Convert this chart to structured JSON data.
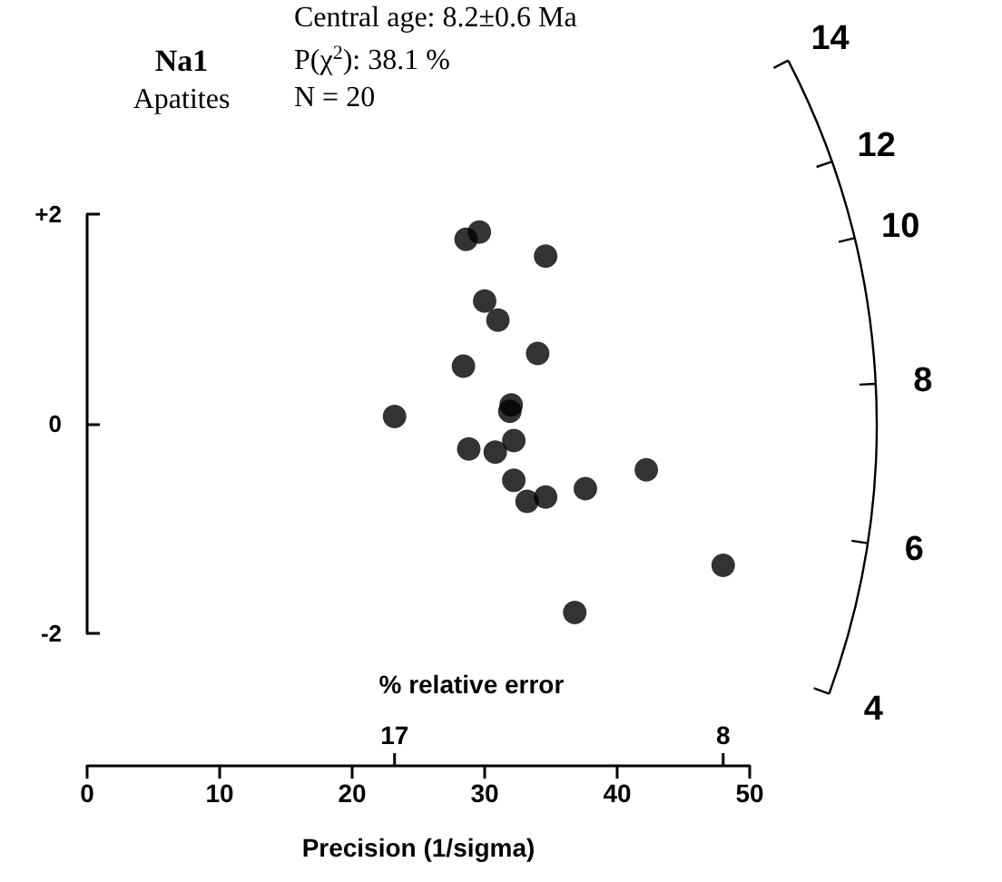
{
  "chart_data": {
    "type": "scatter",
    "title": "Na1",
    "subtitle": "Apatites",
    "xlabel": "Precision (1/sigma)",
    "annotations": [
      "Central age: 8.2±0.6 Ma",
      "P(χ$^{2}$): 38.1 %",
      "N = 20",
      "14",
      "12",
      "10",
      "8",
      "6",
      "4",
      "% relative error",
      "17",
      "8"
    ],
    "x": [
      28.6,
      29.6,
      34.6,
      30.0,
      31.0,
      34.0,
      28.4,
      32.0,
      31.9,
      23.2,
      32.2,
      28.8,
      30.8,
      32.2,
      33.2,
      34.6,
      37.6,
      42.2,
      48.0,
      36.8
    ],
    "series": [
      {
        "color": "#000000",
        "values": [
          1.76,
          1.83,
          1.6,
          1.17,
          0.99,
          0.67,
          0.55,
          0.18,
          0.12,
          0.07,
          -0.16,
          -0.24,
          -0.27,
          -0.54,
          -0.74,
          -0.7,
          -0.62,
          -0.44,
          -1.35,
          -1.8
        ]
      }
    ],
    "xlim": [
      0,
      50
    ],
    "xticks": [
      0,
      10,
      20,
      30,
      40,
      50
    ],
    "ylim": [
      -2,
      2
    ],
    "yticks": [
      {
        "value": 2,
        "label": "+2"
      },
      0,
      -2
    ],
    "marker": "circle",
    "grid": false
  }
}
